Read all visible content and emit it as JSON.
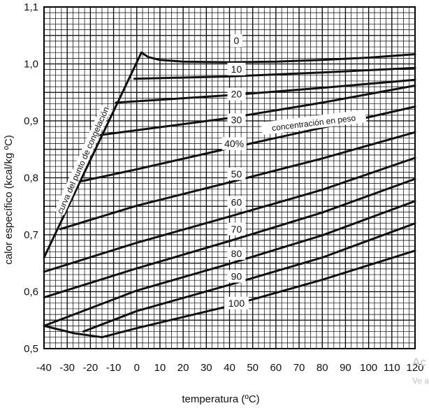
{
  "chart_data": {
    "type": "line",
    "xlabel": "temperatura (ºC)",
    "ylabel": "calor específico (kcal/kg ºC)",
    "xlim": [
      -40,
      120
    ],
    "ylim": [
      0.5,
      1.1
    ],
    "grid": true,
    "x_ticks": [
      "-40",
      "-30",
      "-20",
      "-10",
      "0",
      "10",
      "20",
      "30",
      "40",
      "50",
      "60",
      "70",
      "80",
      "90",
      "100",
      "110",
      "120"
    ],
    "y_ticks": [
      "0,5",
      "0,6",
      "0,7",
      "0,8",
      "0,9",
      "1,0",
      "1,1"
    ],
    "annotations": {
      "concentration": "concentración en peso",
      "freezing_curve": "curva del punto de congelación"
    },
    "series": [
      {
        "name": "0",
        "x": [
          2,
          5,
          10,
          20,
          40,
          60,
          80,
          100,
          120
        ],
        "y": [
          1.02,
          1.012,
          1.007,
          1.004,
          1.003,
          1.004,
          1.007,
          1.011,
          1.017
        ]
      },
      {
        "name": "10",
        "x": [
          -1,
          40,
          80,
          120
        ],
        "y": [
          0.974,
          0.978,
          0.985,
          0.993
        ]
      },
      {
        "name": "20",
        "x": [
          -9,
          40,
          80,
          120
        ],
        "y": [
          0.932,
          0.945,
          0.958,
          0.972
        ]
      },
      {
        "name": "30",
        "x": [
          -16,
          40,
          80,
          120
        ],
        "y": [
          0.875,
          0.905,
          0.932,
          0.962
        ]
      },
      {
        "name": "40%",
        "x": [
          -25,
          0,
          40,
          80,
          120
        ],
        "y": [
          0.793,
          0.815,
          0.852,
          0.888,
          0.925
        ]
      },
      {
        "name": "50",
        "x": [
          -33,
          0,
          40,
          80,
          120
        ],
        "y": [
          0.71,
          0.751,
          0.792,
          0.834,
          0.88
        ]
      },
      {
        "name": "60",
        "x": [
          -40,
          0,
          40,
          80,
          120
        ],
        "y": [
          0.635,
          0.686,
          0.732,
          0.779,
          0.835
        ]
      },
      {
        "name": "70",
        "x": [
          -40,
          0,
          40,
          80,
          120
        ],
        "y": [
          0.59,
          0.641,
          0.689,
          0.739,
          0.798
        ]
      },
      {
        "name": "80",
        "x": [
          -40,
          0,
          40,
          80,
          120
        ],
        "y": [
          0.54,
          0.602,
          0.649,
          0.699,
          0.759
        ]
      },
      {
        "name": "90",
        "x": [
          -23,
          0,
          40,
          80,
          120
        ],
        "y": [
          0.53,
          0.566,
          0.612,
          0.66,
          0.72
        ]
      },
      {
        "name": "100",
        "x": [
          -15,
          0,
          40,
          80,
          120
        ],
        "y": [
          0.52,
          0.536,
          0.575,
          0.621,
          0.672
        ]
      }
    ],
    "freezing_curve": {
      "x": [
        -40,
        2
      ],
      "y": [
        0.66,
        1.02
      ]
    },
    "lower_boundary": {
      "x": [
        -40,
        -27,
        -15
      ],
      "y": [
        0.54,
        0.527,
        0.52
      ]
    },
    "watermark": [
      "Ac",
      "Ve a"
    ]
  }
}
